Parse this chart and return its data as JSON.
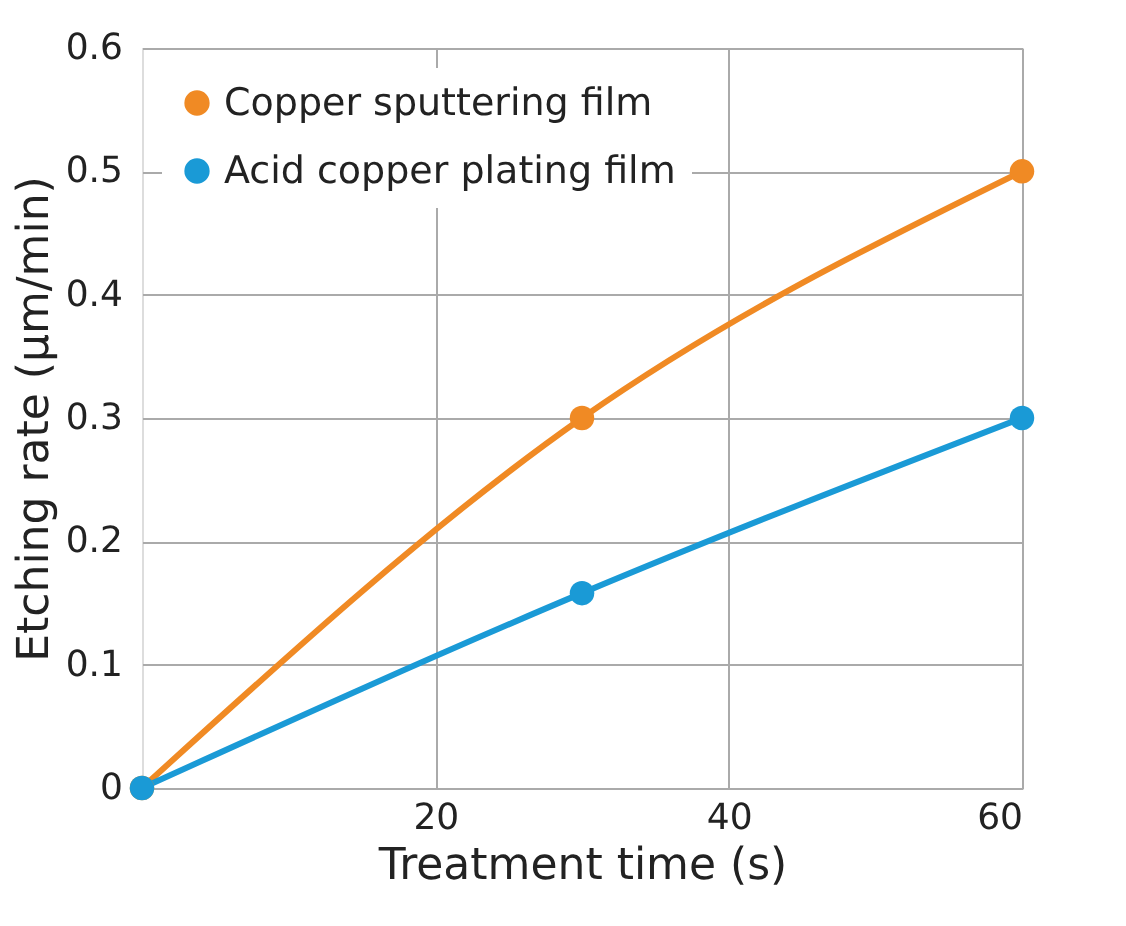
{
  "chart_data": {
    "type": "line",
    "xlabel": "Treatment time (s)",
    "ylabel": "Etching rate (μm/min)",
    "x": [
      0,
      30,
      60
    ],
    "series": [
      {
        "name": "Copper sputtering film",
        "color": "#f08a24",
        "values": [
          0,
          0.3,
          0.5
        ]
      },
      {
        "name": "Acid copper plating film",
        "color": "#1a9ad6",
        "values": [
          0,
          0.158,
          0.3
        ]
      }
    ],
    "xlim": [
      0,
      60
    ],
    "xticks": [
      20,
      40,
      60
    ],
    "ylim": [
      0,
      0.6
    ],
    "yticks": [
      0,
      0.1,
      0.2,
      0.3,
      0.4,
      0.5,
      0.6
    ],
    "grid": true,
    "legend": "top left",
    "marker": "circle",
    "line_style": "solid"
  }
}
